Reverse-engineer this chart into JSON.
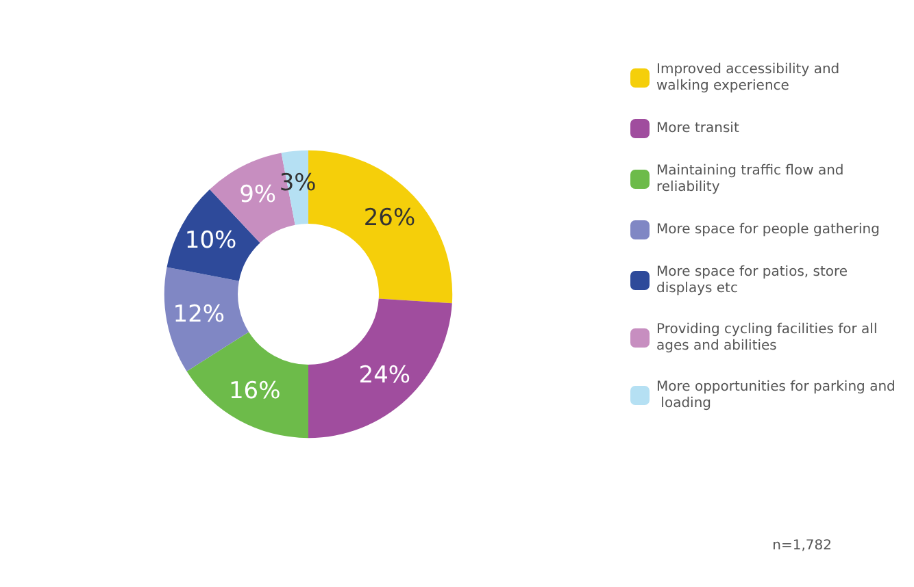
{
  "chart_data": {
    "type": "donut",
    "categories": [
      "Improved accessibility and walking experience",
      "More transit",
      "Maintaining traffic flow and reliability",
      "More space for people gathering",
      "More space for patios, store displays etc",
      "Providing cycling facilities for all ages and abilities",
      "More opportunities for parking and loading"
    ],
    "values": [
      26,
      24,
      16,
      12,
      10,
      9,
      3
    ],
    "value_labels": [
      "26%",
      "24%",
      "16%",
      "12%",
      "10%",
      "9%",
      "3%"
    ],
    "colors": [
      "#f5cf0a",
      "#a04d9e",
      "#6dbb4a",
      "#8087c4",
      "#2e4a9a",
      "#c78ec0",
      "#b5e0f3"
    ],
    "legend": "right",
    "annotations": [
      "n=1,782"
    ]
  }
}
